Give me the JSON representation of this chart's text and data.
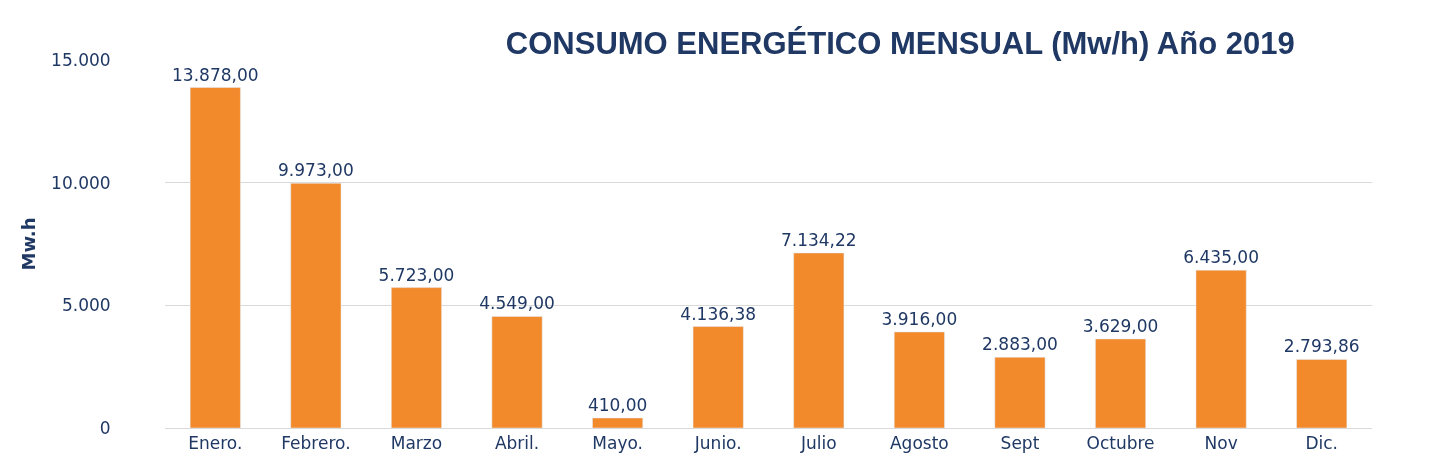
{
  "chart_data": {
    "type": "bar",
    "title": "CONSUMO ENERGÉTICO MENSUAL (Mw/h) Año 2019",
    "ylabel": "Mw.h",
    "categories": [
      "Enero.",
      "Febrero.",
      "Marzo",
      "Abril.",
      "Mayo.",
      "Junio.",
      "Julio",
      "Agosto",
      "Sept",
      "Octubre",
      "Nov",
      "Dic."
    ],
    "values": [
      13878,
      9973,
      5723,
      4549,
      410,
      4136.38,
      7134.22,
      3916,
      2883,
      3629,
      6435,
      2793.86
    ],
    "value_labels": [
      "13.878,00",
      "9.973,00",
      "5.723,00",
      "4.549,00",
      "410,00",
      "4.136,38",
      "7.134,22",
      "3.916,00",
      "2.883,00",
      "3.629,00",
      "6.435,00",
      "2.793,86"
    ],
    "color": "#f28a2c",
    "ylim": [
      0,
      15000
    ],
    "yticks": [
      0,
      {
        "value": 5000,
        "label": "5.000"
      },
      {
        "value": 10000,
        "label": "10.000"
      },
      {
        "value": 15000,
        "label": "15.000"
      }
    ],
    "grid": "y",
    "legend": false
  }
}
